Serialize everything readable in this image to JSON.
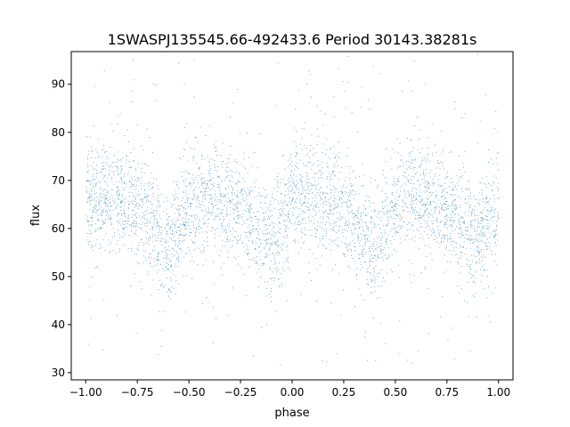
{
  "chart_data": {
    "type": "scatter",
    "title": "1SWASPJ135545.66-492433.6 Period 30143.38281s",
    "xlabel": "phase",
    "ylabel": "flux",
    "xlim": [
      -1.07,
      1.07
    ],
    "ylim": [
      28.5,
      96.8
    ],
    "x_ticks": [
      -1.0,
      -0.75,
      -0.5,
      -0.25,
      0.0,
      0.25,
      0.5,
      0.75,
      1.0
    ],
    "x_tick_labels": [
      "−1.00",
      "−0.75",
      "−0.50",
      "−0.25",
      "0.00",
      "0.25",
      "0.50",
      "0.75",
      "1.00"
    ],
    "y_ticks": [
      30,
      40,
      50,
      60,
      70,
      80,
      90
    ],
    "y_tick_labels": [
      "30",
      "40",
      "50",
      "60",
      "70",
      "80",
      "90"
    ],
    "grid": false,
    "legend": "none",
    "point_color": "#1f77b4",
    "series": [
      {
        "x_range": [
          -1.0,
          1.0
        ],
        "baseline_flux": 65.5,
        "point_count": "dense (~60000 points)",
        "light_curve_profile": {
          "phase": [
            0.0,
            0.05,
            0.1,
            0.15,
            0.2,
            0.25,
            0.3,
            0.35,
            0.38,
            0.4,
            0.42,
            0.45,
            0.5,
            0.55,
            0.6,
            0.65,
            0.7,
            0.75,
            0.8,
            0.85,
            0.88,
            0.9,
            0.92,
            0.95,
            1.0
          ],
          "median_flux": [
            65.0,
            66.0,
            66.5,
            66.5,
            66.0,
            64.5,
            62.5,
            60.0,
            57.0,
            55.0,
            57.5,
            61.0,
            64.5,
            66.0,
            66.5,
            66.0,
            65.0,
            63.5,
            61.5,
            59.5,
            58.5,
            58.0,
            59.0,
            61.5,
            65.0
          ]
        },
        "core_spread": 5.5,
        "outlier_range": [
          31.5,
          96.5
        ]
      }
    ]
  }
}
